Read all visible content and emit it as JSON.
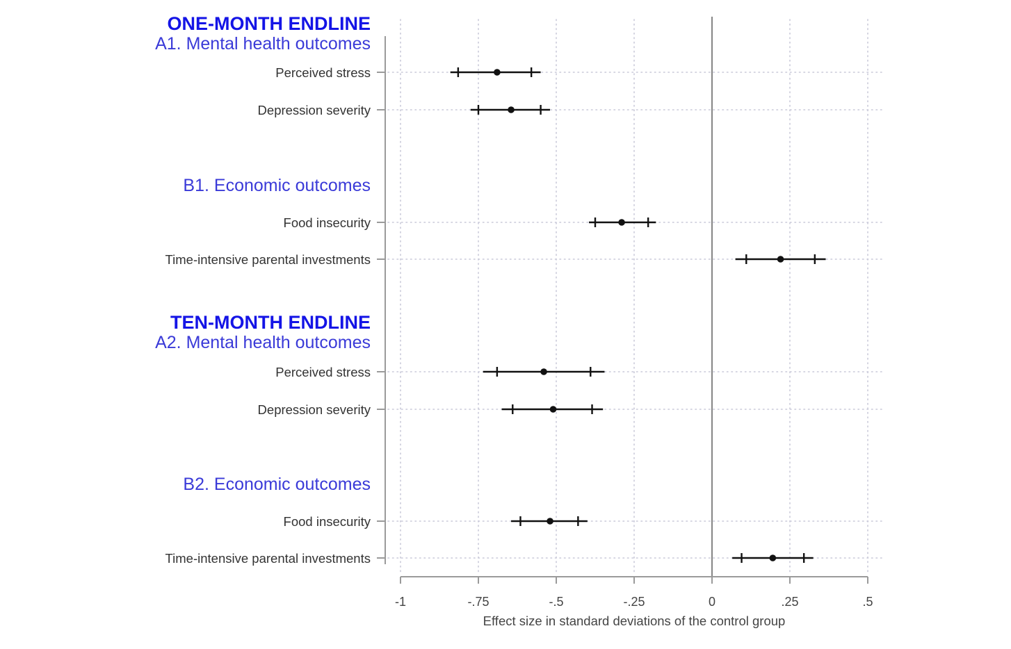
{
  "chart_data": {
    "type": "forest",
    "xlabel": "Effect size in standard deviations of the control group",
    "xlim": [
      -1,
      0.5
    ],
    "xticks": [
      -1,
      -0.75,
      -0.5,
      -0.25,
      0,
      0.25,
      0.5
    ],
    "xtick_labels": [
      "-1",
      "-.75",
      "-.5",
      "-.25",
      "0",
      ".25",
      ".5"
    ],
    "reference_line": 0,
    "grid": "dotted",
    "sections": [
      {
        "title": "ONE-MONTH ENDLINE",
        "groups": [
          {
            "title": "A1. Mental health outcomes",
            "rows": [
              {
                "label": "Perceived stress",
                "estimate": -0.69,
                "ci90": [
                  -0.815,
                  -0.58
                ],
                "ci95": [
                  -0.84,
                  -0.55
                ]
              },
              {
                "label": "Depression severity",
                "estimate": -0.645,
                "ci90": [
                  -0.75,
                  -0.55
                ],
                "ci95": [
                  -0.775,
                  -0.52
                ]
              }
            ]
          },
          {
            "title": "B1. Economic outcomes",
            "rows": [
              {
                "label": "Food insecurity",
                "estimate": -0.29,
                "ci90": [
                  -0.375,
                  -0.205
                ],
                "ci95": [
                  -0.395,
                  -0.18
                ]
              },
              {
                "label": "Time-intensive parental investments",
                "estimate": 0.22,
                "ci90": [
                  0.11,
                  0.33
                ],
                "ci95": [
                  0.075,
                  0.365
                ]
              }
            ]
          }
        ]
      },
      {
        "title": "TEN-MONTH ENDLINE",
        "groups": [
          {
            "title": "A2. Mental health outcomes",
            "rows": [
              {
                "label": "Perceived stress",
                "estimate": -0.54,
                "ci90": [
                  -0.69,
                  -0.39
                ],
                "ci95": [
                  -0.735,
                  -0.345
                ]
              },
              {
                "label": "Depression severity",
                "estimate": -0.51,
                "ci90": [
                  -0.64,
                  -0.385
                ],
                "ci95": [
                  -0.675,
                  -0.35
                ]
              }
            ]
          },
          {
            "title": "B2. Economic outcomes",
            "rows": [
              {
                "label": "Food insecurity",
                "estimate": -0.52,
                "ci90": [
                  -0.615,
                  -0.43
                ],
                "ci95": [
                  -0.645,
                  -0.4
                ]
              },
              {
                "label": "Time-intensive parental investments",
                "estimate": 0.195,
                "ci90": [
                  0.095,
                  0.295
                ],
                "ci95": [
                  0.065,
                  0.325
                ]
              }
            ]
          }
        ]
      }
    ]
  }
}
